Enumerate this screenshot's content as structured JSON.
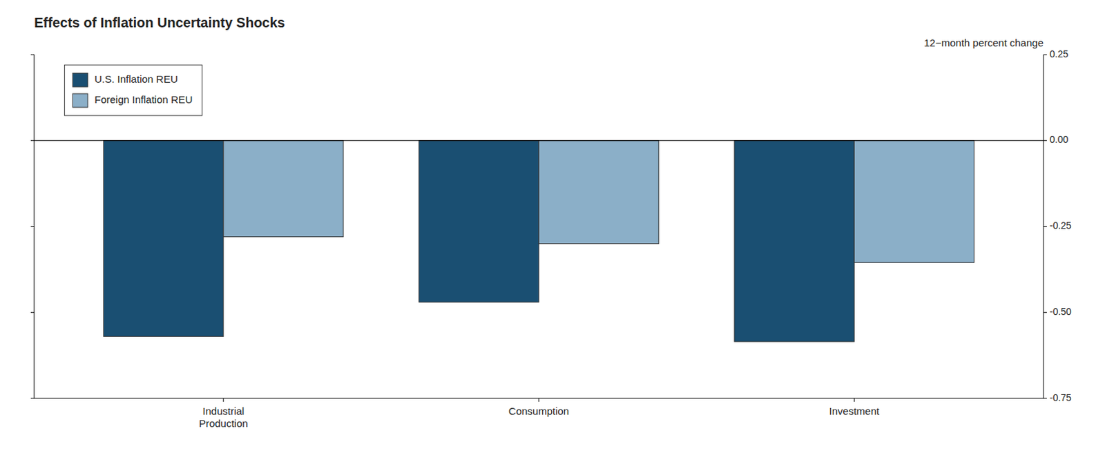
{
  "chart_data": {
    "type": "bar",
    "title": "Effects of Inflation Uncertainty Shocks",
    "ylabel": "12−month percent change",
    "categories": [
      "Industrial\nProduction",
      "Consumption",
      "Investment"
    ],
    "series": [
      {
        "name": "U.S. Inflation REU",
        "color": "#1a4f72",
        "values": [
          -0.57,
          -0.47,
          -0.585
        ]
      },
      {
        "name": "Foreign Inflation REU",
        "color": "#8bafc8",
        "values": [
          -0.28,
          -0.3,
          -0.355
        ]
      }
    ],
    "ylim": [
      -0.75,
      0.25
    ],
    "yticks": [
      -0.75,
      {
        "value": -0.5,
        "label": "-0.50"
      },
      -0.25,
      {
        "value": 0,
        "label": "0.00"
      },
      0.25
    ],
    "grid": false,
    "legend": "upper left"
  }
}
